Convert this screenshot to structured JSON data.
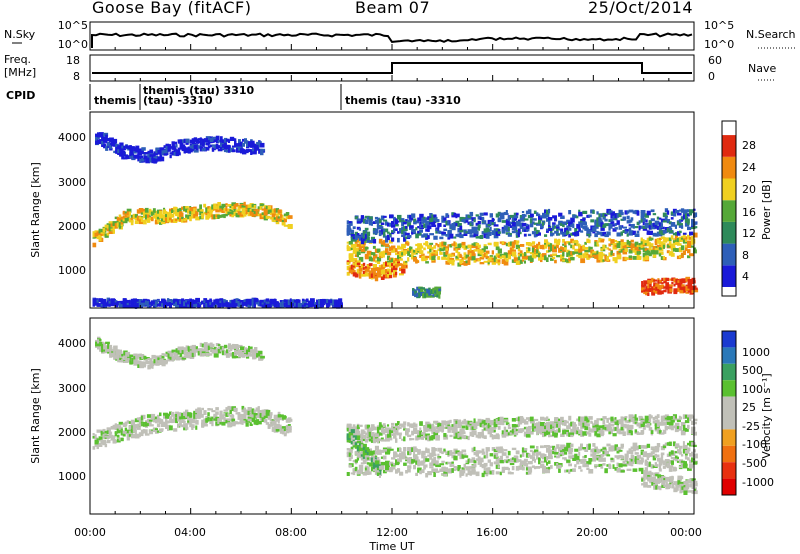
{
  "header": {
    "station": "Goose Bay (fitACF)",
    "beam": "Beam 07",
    "date": "25/Oct/2014"
  },
  "strips": {
    "nsky_label": "N.Sky",
    "nsky_ticks": [
      "10^5",
      "10^0"
    ],
    "nsearch_label": "N.Search",
    "nsearch_ticks": [
      "10^5",
      "10^0"
    ],
    "freq_label_1": "Freq.",
    "freq_label_2": "[MHz]",
    "freq_ticks": [
      "18",
      "8"
    ],
    "nave_label": "Nave",
    "nave_ticks": [
      "60",
      "0"
    ],
    "cpid_label": "CPID",
    "cpid_segments": [
      {
        "line1": "themis",
        "line2": ""
      },
      {
        "line1": "themis (tau) 3310",
        "line2": "(tau) -3310"
      },
      {
        "line1": "themis (tau) -3310",
        "line2": ""
      }
    ]
  },
  "chart_data": [
    {
      "type": "heatmap",
      "name": "power",
      "ylabel": "Slant Range [km]",
      "yticks": [
        "1000",
        "2000",
        "3000",
        "4000"
      ],
      "ylim": [
        200,
        4600
      ],
      "xlim": [
        0,
        24
      ],
      "colorbar_label": "Power [dB]",
      "colorbar_ticks": [
        "4",
        "8",
        "12",
        "16",
        "20",
        "24",
        "28"
      ],
      "colors": [
        "#1a1ad8",
        "#2e5fb8",
        "#2e8a5a",
        "#55a838",
        "#f0d020",
        "#f08a10",
        "#e02a10"
      ],
      "bands": [
        {
          "x0": 0.1,
          "x1": 7.9,
          "mid": [
            1750,
            2250,
            2250,
            2330,
            2400,
            2400,
            2150
          ],
          "w": 180,
          "lvl": 4
        },
        {
          "x0": 0.2,
          "x1": 6.8,
          "mid": [
            4050,
            3700,
            3600,
            3800,
            3900,
            3850,
            3800
          ],
          "w": 180,
          "lvl": 0
        },
        {
          "x0": 0.1,
          "x1": 9.9,
          "mid": [
            320,
            300,
            310,
            300,
            310,
            300,
            300
          ],
          "w": 90,
          "lvl": 0
        },
        {
          "x0": 10.2,
          "x1": 24.0,
          "mid": [
            1500,
            1450,
            1400,
            1450,
            1500,
            1500,
            1600
          ],
          "w": 300,
          "lvl": 4
        },
        {
          "x0": 10.2,
          "x1": 24.0,
          "mid": [
            1950,
            2000,
            2050,
            2100,
            2100,
            2100,
            2150
          ],
          "w": 350,
          "lvl": 1
        },
        {
          "x0": 10.2,
          "x1": 12.5,
          "mid": [
            1100,
            1000,
            1100
          ],
          "w": 200,
          "lvl": 5
        },
        {
          "x0": 21.9,
          "x1": 24.0,
          "mid": [
            650,
            700,
            700
          ],
          "w": 200,
          "lvl": 6
        },
        {
          "x0": 12.8,
          "x1": 13.9,
          "mid": [
            550,
            550
          ],
          "w": 120,
          "lvl": 2
        }
      ]
    },
    {
      "type": "heatmap",
      "name": "velocity",
      "ylabel": "Slant Range [km]",
      "yticks": [
        "1000",
        "2000",
        "3000",
        "4000"
      ],
      "ylim": [
        200,
        4600
      ],
      "xlim": [
        0,
        24
      ],
      "xlabel": "Time UT",
      "xticks": [
        "00:00",
        "04:00",
        "08:00",
        "12:00",
        "16:00",
        "20:00",
        "00:00"
      ],
      "colorbar_label": "Velocity [m s⁻¹]",
      "colorbar_ticks": [
        "1000",
        "500",
        "100",
        "25",
        "-25",
        "-100",
        "-500",
        "-1000"
      ],
      "colors": [
        "#1a3ad0",
        "#2a78b8",
        "#3aa060",
        "#5ac030",
        "#c0c0b8",
        "#c0c0b8",
        "#f0a020",
        "#f07010",
        "#e83010",
        "#e00000"
      ],
      "bands": [
        {
          "x0": 0.1,
          "x1": 7.9,
          "mid": [
            1850,
            2100,
            2250,
            2330,
            2400,
            2400,
            2150
          ],
          "w": 260,
          "lvl": 4
        },
        {
          "x0": 0.2,
          "x1": 6.8,
          "mid": [
            4050,
            3700,
            3600,
            3800,
            3900,
            3850,
            3800
          ],
          "w": 160,
          "lvl": 4
        },
        {
          "x0": 10.2,
          "x1": 24.0,
          "mid": [
            1400,
            1380,
            1350,
            1400,
            1450,
            1450,
            1500
          ],
          "w": 380,
          "lvl": 4
        },
        {
          "x0": 10.2,
          "x1": 24.0,
          "mid": [
            2000,
            2050,
            2100,
            2150,
            2150,
            2200,
            2200
          ],
          "w": 250,
          "lvl": 4
        },
        {
          "x0": 21.9,
          "x1": 24.0,
          "mid": [
            1000,
            900,
            800
          ],
          "w": 200,
          "lvl": 4
        },
        {
          "x0": 10.2,
          "x1": 11.5,
          "mid": [
            2000,
            1600,
            1100
          ],
          "w": 200,
          "lvl": 3
        }
      ]
    }
  ]
}
